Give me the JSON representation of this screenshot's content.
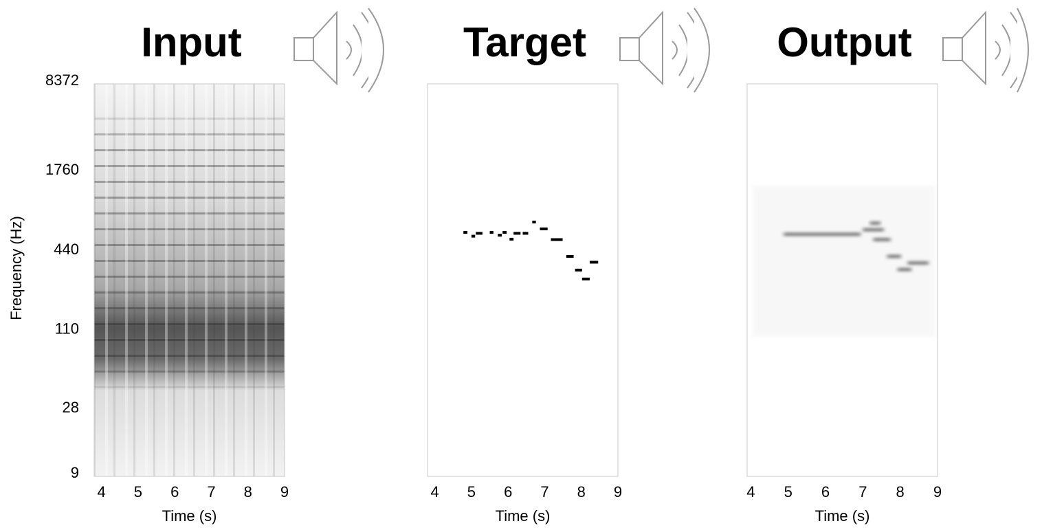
{
  "chart_data": [
    {
      "type": "spectrogram",
      "title": "Input",
      "xlabel": "Time (s)",
      "ylabel": "Frequency (Hz)",
      "xlim": [
        3.8,
        9
      ],
      "xticks": [
        4,
        5,
        6,
        7,
        8,
        9
      ],
      "ylim": [
        9,
        8372
      ],
      "yticks": [
        9,
        28,
        110,
        440,
        1760,
        8372
      ],
      "log_y": true
    },
    {
      "type": "spectrogram",
      "title": "Target",
      "xlabel": "Time (s)",
      "xlim": [
        3.8,
        9
      ],
      "xticks": [
        4,
        5,
        6,
        7,
        8,
        9
      ],
      "ylim": [
        9,
        8372
      ],
      "log_y": true,
      "color": "#000000",
      "notes": {
        "start": [
          4.78,
          5.0,
          5.12,
          5.5,
          5.72,
          5.85,
          6.04,
          6.15,
          6.4,
          6.66,
          6.87,
          7.17,
          7.59,
          7.83,
          8.02,
          8.23
        ],
        "end": [
          4.89,
          5.1,
          5.3,
          5.6,
          5.83,
          5.96,
          6.15,
          6.34,
          6.55,
          6.76,
          7.08,
          7.49,
          7.79,
          8.02,
          8.23,
          8.46
        ],
        "freq": [
          630,
          590,
          620,
          630,
          600,
          630,
          560,
          620,
          620,
          755,
          670,
          556,
          415,
          327,
          280,
          375
        ]
      }
    },
    {
      "type": "spectrogram",
      "title": "Output",
      "xlabel": "Time (s)",
      "xlim": [
        3.9,
        9
      ],
      "xticks": [
        4,
        5,
        6,
        7,
        8,
        9
      ],
      "ylim": [
        9,
        8372
      ],
      "log_y": true,
      "color": "#555555",
      "blur": true,
      "notes": {
        "start": [
          4.88,
          7.0,
          7.19,
          7.28,
          7.65,
          7.93,
          8.2
        ],
        "end": [
          6.94,
          7.56,
          7.47,
          7.74,
          8.02,
          8.3,
          8.76
        ],
        "freq": [
          610,
          660,
          740,
          556,
          415,
          330,
          370
        ]
      }
    }
  ]
}
